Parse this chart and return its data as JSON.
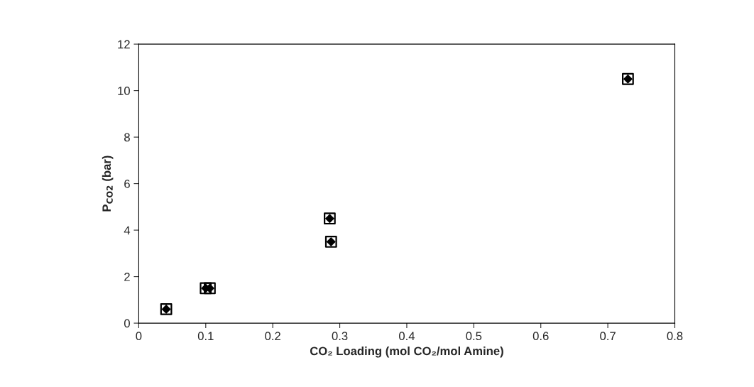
{
  "chart_data": {
    "type": "scatter",
    "xlabel": "CO₂ Loading (mol CO₂/mol Amine)",
    "ylabel": "P$_{CO2}$ (bar)",
    "x": [
      0.041,
      0.1,
      0.106,
      0.285,
      0.287,
      0.73
    ],
    "series": [
      {
        "color": "#000000",
        "marker": "square",
        "values": [
          0.6,
          1.5,
          1.5,
          4.5,
          3.5,
          10.5
        ]
      },
      {
        "color": "#000000",
        "marker": "diamond",
        "values": [
          0.6,
          1.5,
          1.5,
          4.5,
          3.5,
          10.5
        ]
      }
    ],
    "xlim": [
      0,
      0.8
    ],
    "xticks": [
      0,
      0.1,
      0.2,
      0.3,
      0.4,
      0.5,
      0.6,
      0.7,
      0.8
    ],
    "ylim": [
      0,
      12
    ],
    "yticks": [
      0,
      2,
      4,
      6,
      8,
      10,
      12
    ],
    "grid": false,
    "legend": false
  }
}
